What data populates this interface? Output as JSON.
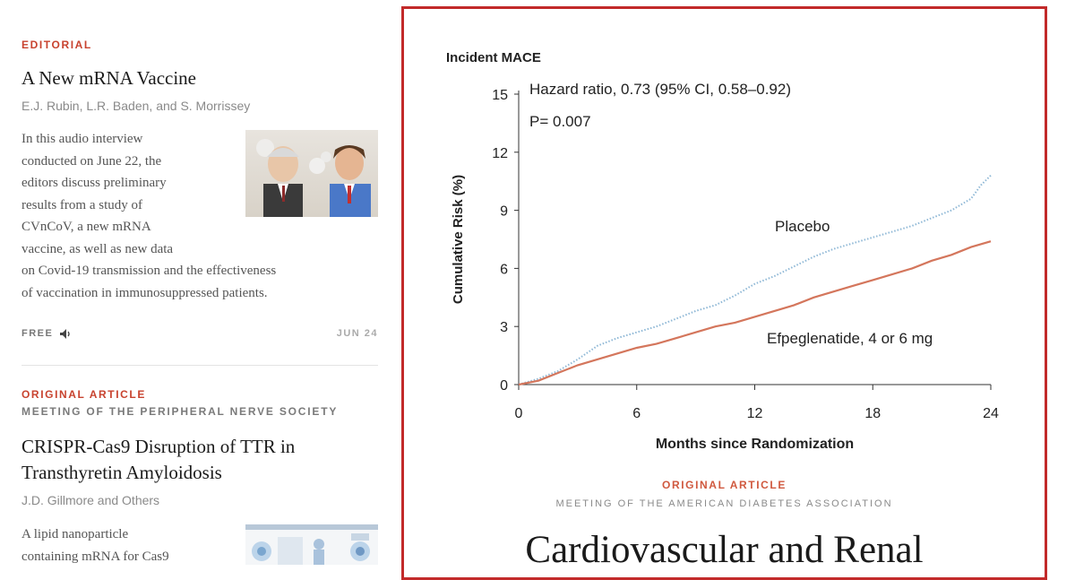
{
  "left_feed": {
    "article1": {
      "kicker": "EDITORIAL",
      "title": "A New mRNA Vaccine",
      "authors": "E.J. Rubin, L.R. Baden, and S. Morrissey",
      "summary_lines": [
        "In this audio interview",
        "conducted on June 22, the",
        "editors discuss preliminary",
        "results from a study of",
        "CVnCoV, a new mRNA",
        "vaccine, as well as new data",
        "on Covid-19 transmission and the effectiveness",
        "of vaccination in immunosuppressed patients."
      ],
      "access": "FREE",
      "audio_icon": "speaker-icon",
      "date": "JUN 24"
    },
    "article2": {
      "kicker": "ORIGINAL ARTICLE",
      "subkicker": "MEETING OF THE PERIPHERAL NERVE SOCIETY",
      "title_lines": [
        "CRISPR-Cas9 Disruption of TTR in",
        "Transthyretin Amyloidosis"
      ],
      "authors": "J.D. Gillmore and Others",
      "summary_lines": [
        "A lipid nanoparticle",
        "containing mRNA for Cas9"
      ]
    }
  },
  "featured": {
    "kicker": "ORIGINAL ARTICLE",
    "subkicker": "MEETING OF THE AMERICAN DIABETES ASSOCIATION",
    "title": "Cardiovascular and Renal",
    "highlight_color": "#c22a2a"
  },
  "chart_data": {
    "type": "line",
    "title": "Incident MACE",
    "xlabel": "Months since Randomization",
    "ylabel": "Cumulative Risk (%)",
    "xlim": [
      0,
      24
    ],
    "ylim": [
      0,
      15
    ],
    "xticks": [
      0,
      6,
      12,
      18,
      24
    ],
    "yticks": [
      0,
      3,
      6,
      9,
      12,
      15
    ],
    "annotations": [
      "Hazard ratio, 0.73 (95% CI, 0.58–0.92)",
      "P= 0.007"
    ],
    "series": [
      {
        "name": "Placebo",
        "color": "#8fb8d6",
        "style": "dotted",
        "x": [
          0,
          1,
          2,
          3,
          4,
          5,
          6,
          7,
          8,
          9,
          10,
          11,
          12,
          13,
          14,
          15,
          16,
          17,
          18,
          19,
          20,
          21,
          22,
          23,
          23.5,
          24
        ],
        "y": [
          0,
          0.3,
          0.7,
          1.3,
          2.0,
          2.4,
          2.7,
          3.0,
          3.4,
          3.8,
          4.1,
          4.6,
          5.2,
          5.6,
          6.1,
          6.6,
          7.0,
          7.3,
          7.6,
          7.9,
          8.2,
          8.6,
          9.0,
          9.6,
          10.3,
          10.8
        ]
      },
      {
        "name": "Efpeglenatide, 4 or 6 mg",
        "color": "#d4765c",
        "style": "solid",
        "x": [
          0,
          1,
          2,
          3,
          4,
          5,
          6,
          7,
          8,
          9,
          10,
          11,
          12,
          13,
          14,
          15,
          16,
          17,
          18,
          19,
          20,
          21,
          22,
          23,
          24
        ],
        "y": [
          0,
          0.2,
          0.6,
          1.0,
          1.3,
          1.6,
          1.9,
          2.1,
          2.4,
          2.7,
          3.0,
          3.2,
          3.5,
          3.8,
          4.1,
          4.5,
          4.8,
          5.1,
          5.4,
          5.7,
          6.0,
          6.4,
          6.7,
          7.1,
          7.4
        ]
      }
    ]
  }
}
